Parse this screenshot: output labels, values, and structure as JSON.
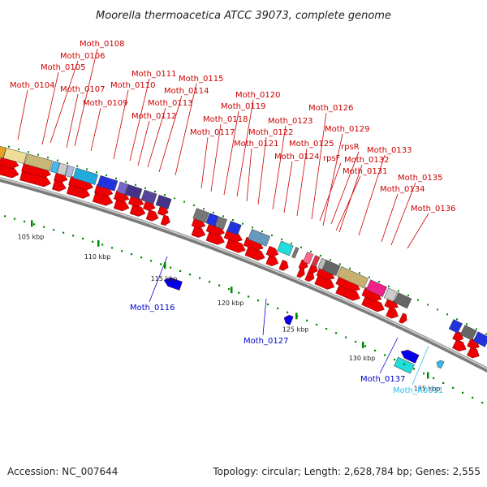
{
  "title": "Moorella thermoacetica ATCC 39073, complete genome",
  "footer": {
    "accession": "Accession: NC_007644",
    "summary": "Topology: circular; Length: 2,628,784 bp; Genes: 2,555"
  },
  "colors": {
    "top_label": "#cc0000",
    "bottom_label": "#0000cc",
    "rna_label": "#33bbee",
    "forward_arrow": "#ee0000",
    "reverse_arrow": "#0000ee",
    "tick": "#008800",
    "backbone": "#999999"
  },
  "labels_top": [
    "Moth_0104",
    "Moth_0105",
    "Moth_0106",
    "Moth_0107",
    "Moth_0108",
    "Moth_0109",
    "Moth_0110",
    "Moth_0111",
    "Moth_0112",
    "Moth_0113",
    "Moth_0114",
    "Moth_0115",
    "Moth_0117",
    "Moth_0118",
    "Moth_0119",
    "Moth_0120",
    "Moth_0121",
    "Moth_0122",
    "Moth_0123",
    "Moth_0124",
    "Moth_0125",
    "Moth_0126",
    "rpsF",
    "rpsR",
    "Moth_0129",
    "Moth_0131",
    "Moth_0132",
    "Moth_0133",
    "Moth_0134",
    "Moth_0135",
    "Moth_0136"
  ],
  "labels_bottom": [
    "Moth_0116",
    "Moth_0127",
    "Moth_0137",
    "Moth_R0011"
  ],
  "kbp_labels": [
    "105 kbp",
    "110 kbp",
    "115 kbp",
    "120 kbp",
    "125 kbp",
    "130 kbp",
    "135 kbp"
  ]
}
